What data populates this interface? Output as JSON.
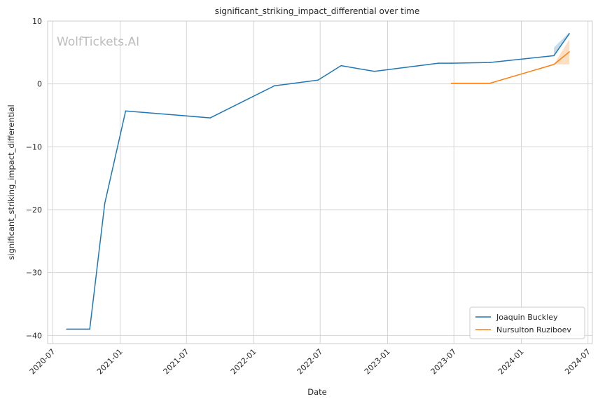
{
  "chart_data": {
    "type": "line",
    "title": "significant_striking_impact_differential over time",
    "xlabel": "Date",
    "ylabel": "significant_striking_impact_differential",
    "watermark": "WolfTickets.AI",
    "xlim": [
      "2020-06-17",
      "2024-07-13"
    ],
    "ylim": [
      -41.3,
      10.0
    ],
    "grid": true,
    "legend_position": "bottom-right",
    "x_ticks": [
      "2020-07",
      "2021-01",
      "2021-07",
      "2022-01",
      "2022-07",
      "2023-01",
      "2023-07",
      "2024-01",
      "2024-07"
    ],
    "y_ticks": [
      10,
      0,
      -10,
      -20,
      -30,
      -40
    ],
    "y_tick_labels": [
      "10",
      "0",
      "−10",
      "−20",
      "−30",
      "−40"
    ],
    "series": [
      {
        "name": "Joaquin Buckley",
        "color": "#1f77b4",
        "x": [
          "2020-08-08",
          "2020-10-10",
          "2020-11-20",
          "2021-01-16",
          "2021-09-04",
          "2022-02-26",
          "2022-06-25",
          "2022-08-27",
          "2022-11-26",
          "2023-05-20",
          "2023-06-24",
          "2023-10-07",
          "2024-03-30",
          "2024-05-11"
        ],
        "y": [
          -39,
          -39,
          -19,
          -4.3,
          -5.4,
          -0.3,
          0.6,
          2.9,
          2.0,
          3.3,
          3.3,
          3.4,
          4.5,
          8.0
        ],
        "band": {
          "x": [
            "2024-03-30",
            "2024-05-11"
          ],
          "lower": [
            4.5,
            7.8
          ],
          "upper": [
            5.8,
            8.2
          ]
        }
      },
      {
        "name": "Nursulton Ruziboev",
        "color": "#ff7f0e",
        "x": [
          "2023-06-24",
          "2023-10-07",
          "2024-03-30",
          "2024-05-11"
        ],
        "y": [
          0.1,
          0.1,
          3.1,
          5.1
        ],
        "band": {
          "x": [
            "2024-03-30",
            "2024-05-11"
          ],
          "lower": [
            3.1,
            3.1
          ],
          "upper": [
            3.1,
            7.1
          ]
        }
      }
    ]
  }
}
